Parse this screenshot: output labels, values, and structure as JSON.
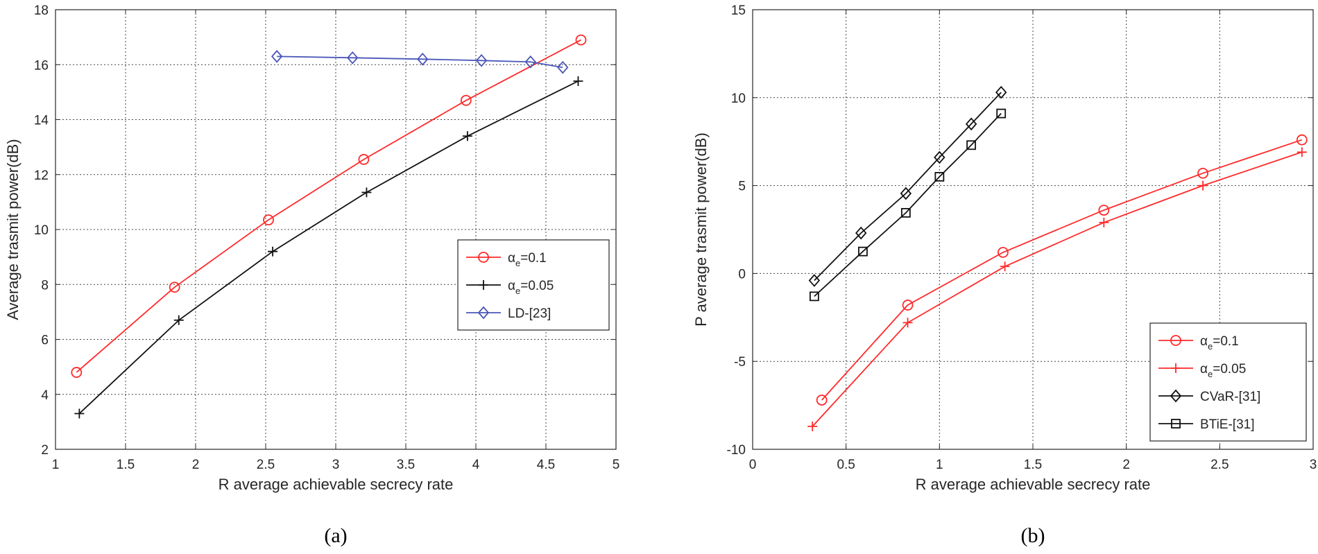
{
  "chart_data": [
    {
      "type": "line",
      "caption": "(a)",
      "xlabel": "R average achievable secrecy rate",
      "ylabel": "Average trasmit power(dB)",
      "xlim": [
        1,
        5
      ],
      "ylim": [
        2,
        18
      ],
      "xticks": [
        1,
        1.5,
        2,
        2.5,
        3,
        3.5,
        4,
        4.5,
        5
      ],
      "yticks": [
        2,
        4,
        6,
        8,
        10,
        12,
        14,
        16,
        18
      ],
      "xtick_labels": [
        "1",
        "1.5",
        "2",
        "2.5",
        "3",
        "3.5",
        "4",
        "4.5",
        "5"
      ],
      "ytick_labels": [
        "2",
        "4",
        "6",
        "8",
        "10",
        "12",
        "14",
        "16",
        "18"
      ],
      "grid": true,
      "legend_position": "middle-right",
      "series": [
        {
          "name": "α_e=0.1",
          "label_main": "α",
          "label_sub": "e",
          "label_rest": "=0.1",
          "color": "#ff2a2a",
          "marker": "circle",
          "x": [
            1.15,
            1.85,
            2.52,
            3.2,
            3.93,
            4.75
          ],
          "y": [
            4.8,
            7.9,
            10.35,
            12.55,
            14.7,
            16.9
          ]
        },
        {
          "name": "α_e=0.05",
          "label_main": "α",
          "label_sub": "e",
          "label_rest": "=0.05",
          "color": "#111111",
          "marker": "plus",
          "x": [
            1.17,
            1.88,
            2.55,
            3.22,
            3.94,
            4.73
          ],
          "y": [
            3.3,
            6.7,
            9.2,
            11.35,
            13.4,
            15.4
          ]
        },
        {
          "name": "LD-[23]",
          "label_main": "LD-[23]",
          "label_sub": "",
          "label_rest": "",
          "color": "#4a56b8",
          "marker": "diamond",
          "x": [
            2.58,
            3.12,
            3.62,
            4.04,
            4.39,
            4.62
          ],
          "y": [
            16.3,
            16.25,
            16.2,
            16.15,
            16.1,
            15.9
          ]
        }
      ]
    },
    {
      "type": "line",
      "caption": "(b)",
      "xlabel": "R average achievable secrecy rate",
      "ylabel": "P average trasmit power(dB)",
      "xlim": [
        0,
        3
      ],
      "ylim": [
        -10,
        15
      ],
      "xticks": [
        0,
        0.5,
        1,
        1.5,
        2,
        2.5,
        3
      ],
      "yticks": [
        -10,
        -5,
        0,
        5,
        10,
        15
      ],
      "xtick_labels": [
        "0",
        "0.5",
        "1",
        "1.5",
        "2",
        "2.5",
        "3"
      ],
      "ytick_labels": [
        "-10",
        "-5",
        "0",
        "5",
        "10",
        "15"
      ],
      "grid": true,
      "legend_position": "bottom-right",
      "series": [
        {
          "name": "α_e=0.1",
          "label_main": "α",
          "label_sub": "e",
          "label_rest": "=0.1",
          "color": "#ff2a2a",
          "marker": "circle",
          "x": [
            0.37,
            0.83,
            1.34,
            1.88,
            2.41,
            2.94
          ],
          "y": [
            -7.2,
            -1.8,
            1.2,
            3.6,
            5.7,
            7.6
          ]
        },
        {
          "name": "α_e=0.05",
          "label_main": "α",
          "label_sub": "e",
          "label_rest": "=0.05",
          "color": "#ff2a2a",
          "marker": "plus",
          "x": [
            0.32,
            0.83,
            1.35,
            1.88,
            2.41,
            2.94
          ],
          "y": [
            -8.7,
            -2.8,
            0.4,
            2.9,
            5.0,
            6.9
          ]
        },
        {
          "name": "CVaR-[31]",
          "label_main": "CVaR-[31]",
          "label_sub": "",
          "label_rest": "",
          "color": "#111111",
          "marker": "diamond",
          "x": [
            0.33,
            0.58,
            0.82,
            1.0,
            1.17,
            1.33
          ],
          "y": [
            -0.4,
            2.3,
            4.55,
            6.6,
            8.5,
            10.3
          ]
        },
        {
          "name": "BTiE-[31]",
          "label_main": "BTiE-[31]",
          "label_sub": "",
          "label_rest": "",
          "color": "#111111",
          "marker": "square",
          "x": [
            0.33,
            0.59,
            0.82,
            1.0,
            1.17,
            1.33
          ],
          "y": [
            -1.3,
            1.25,
            3.45,
            5.5,
            7.3,
            9.1
          ]
        }
      ]
    }
  ]
}
